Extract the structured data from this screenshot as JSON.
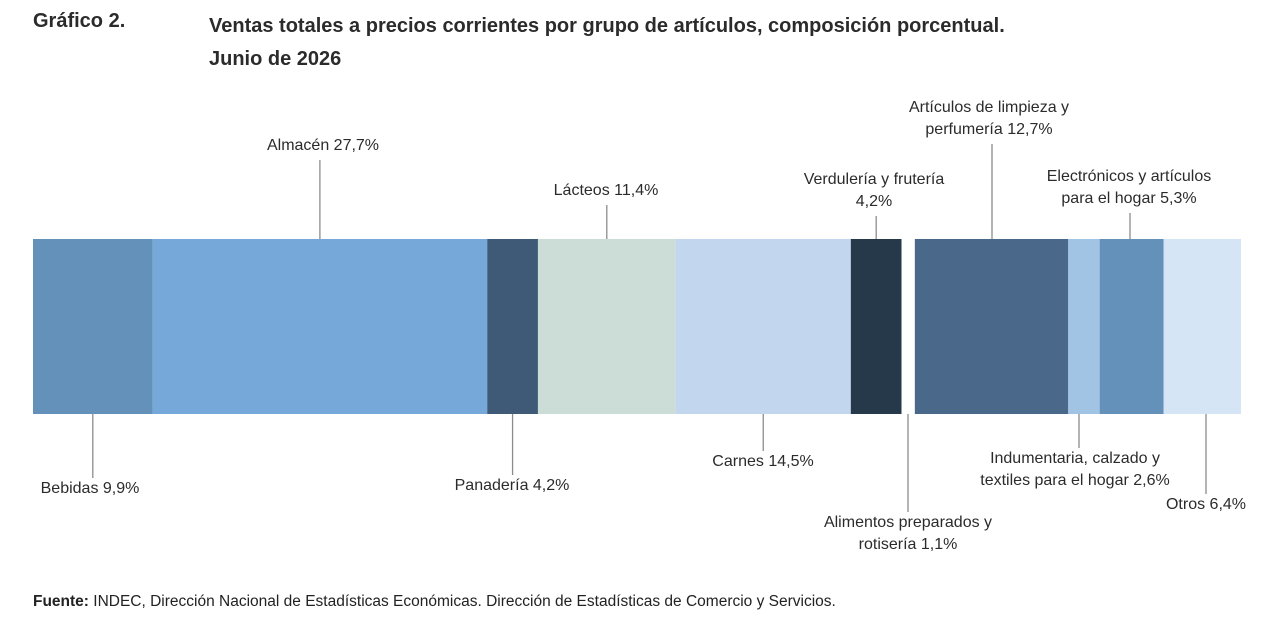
{
  "header": {
    "label": "Gráfico 2.",
    "title_line1": "Ventas totales a precios corrientes por grupo de artículos, composición porcentual.",
    "title_line2": "Junio de 2026"
  },
  "chart_data": {
    "type": "bar",
    "layout": "stacked-100",
    "orientation": "horizontal",
    "categories": [
      "Bebidas",
      "Almacén",
      "Panadería",
      "Lácteos",
      "Carnes",
      "Verdulería y frutería",
      "Alimentos preparados y rotisería",
      "Artículos de limpieza y perfumería",
      "Indumentaria, calzado y textiles para el hogar",
      "Electrónicos y artículos para el hogar",
      "Otros"
    ],
    "values": [
      9.9,
      27.7,
      4.2,
      11.4,
      14.5,
      4.2,
      1.1,
      12.7,
      2.6,
      5.3,
      6.4
    ],
    "unit": "%",
    "colors": [
      "#6391ba",
      "#76a9da",
      "#3e5a76",
      "#ccddd8",
      "#c2d7ee",
      "#26394a",
      "#ffffff",
      "#4a6889",
      "#a2c4e4",
      "#6391ba",
      "#d5e5f5"
    ],
    "labels": [
      {
        "lines": [
          "Bebidas 9,9%"
        ],
        "side": "below"
      },
      {
        "lines": [
          "Almacén 27,7%"
        ],
        "side": "above"
      },
      {
        "lines": [
          "Panadería 4,2%"
        ],
        "side": "below"
      },
      {
        "lines": [
          "Lácteos 11,4%"
        ],
        "side": "above"
      },
      {
        "lines": [
          "Carnes 14,5%"
        ],
        "side": "below"
      },
      {
        "lines": [
          "Verdulería y frutería",
          "4,2%"
        ],
        "side": "above"
      },
      {
        "lines": [
          "Alimentos preparados y",
          "rotisería 1,1%"
        ],
        "side": "below"
      },
      {
        "lines": [
          "Artículos de limpieza y",
          "perfumería 12,7%"
        ],
        "side": "above"
      },
      {
        "lines": [
          "Indumentaria, calzado y",
          "textiles para el hogar 2,6%"
        ],
        "side": "below"
      },
      {
        "lines": [
          "Electrónicos y artículos",
          "para el hogar 5,3%"
        ],
        "side": "above"
      },
      {
        "lines": [
          "Otros 6,4%"
        ],
        "side": "below"
      }
    ]
  },
  "source": {
    "label": "Fuente:",
    "text": " INDEC, Dirección Nacional de Estadísticas Económicas. Dirección de Estadísticas de Comercio y Servicios."
  }
}
